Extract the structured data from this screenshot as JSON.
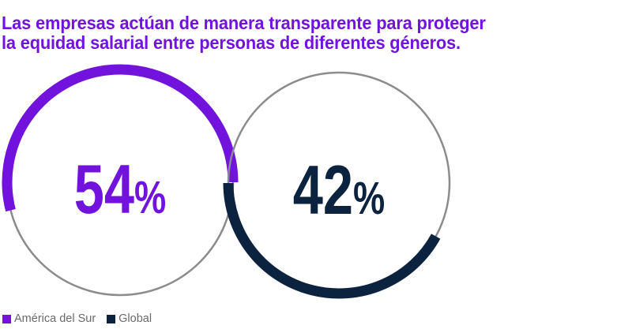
{
  "title_lines": [
    "Las empresas actúan de manera transparente para proteger",
    "la equidad salarial entre personas de diferentes géneros."
  ],
  "colors": {
    "title": "#7113dd",
    "ring": "#8c8c8c",
    "legend_text": "#6a6a6a"
  },
  "chart_data": {
    "type": "pie",
    "title": "Las empresas actúan de manera transparente para proteger la equidad salarial entre personas de diferentes géneros.",
    "categories": [
      "América del Sur",
      "Global"
    ],
    "values": [
      54,
      42
    ],
    "unit": "%",
    "series": [
      {
        "name": "América del Sur",
        "value": 54,
        "label_number": "54",
        "label_unit": "%",
        "color": "#7113dd"
      },
      {
        "name": "Global",
        "value": 42,
        "label_number": "42",
        "label_unit": "%",
        "color": "#0c2340"
      }
    ],
    "legend": {
      "position": "bottom-left",
      "items": [
        "América del Sur",
        "Global"
      ]
    }
  }
}
